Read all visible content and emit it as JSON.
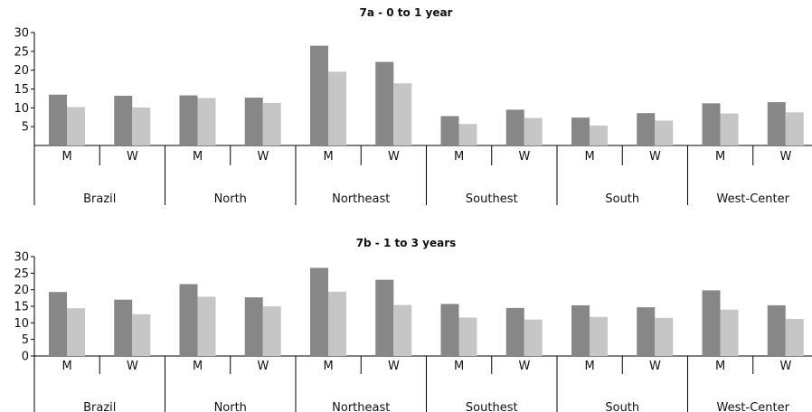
{
  "chart_data": [
    {
      "type": "bar",
      "title": "7a - 0 to 1 year",
      "xlabel": "",
      "ylabel": "",
      "ylim": [
        0,
        30
      ],
      "yticks": [
        5,
        10,
        15,
        20,
        25,
        30
      ],
      "grid": false,
      "legend": "none",
      "regions": [
        "Brazil",
        "North",
        "Northeast",
        "Southest",
        "South",
        "West-Center"
      ],
      "categories": [
        "M",
        "W",
        "M",
        "W",
        "M",
        "W",
        "M",
        "W",
        "M",
        "W",
        "M",
        "W"
      ],
      "colors": [
        "#878787",
        "#c6c6c6"
      ],
      "series": [
        {
          "values": [
            13.5,
            13.2,
            13.3,
            12.7,
            26.5,
            22.2,
            7.8,
            9.5,
            7.4,
            8.6,
            11.2,
            11.5
          ]
        },
        {
          "values": [
            10.2,
            10.1,
            12.6,
            11.3,
            19.6,
            16.5,
            5.7,
            7.3,
            5.3,
            6.6,
            8.5,
            8.8
          ]
        }
      ]
    },
    {
      "type": "bar",
      "title": "7b - 1 to 3 years",
      "xlabel": "",
      "ylabel": "",
      "ylim": [
        0,
        30
      ],
      "yticks": [
        0,
        5,
        10,
        15,
        20,
        25,
        30
      ],
      "grid": false,
      "legend": "none",
      "regions": [
        "Brazil",
        "North",
        "Northeast",
        "Southest",
        "South",
        "West-Center"
      ],
      "categories": [
        "M",
        "W",
        "M",
        "W",
        "M",
        "W",
        "M",
        "W",
        "M",
        "W",
        "M",
        "W"
      ],
      "colors": [
        "#878787",
        "#c6c6c6"
      ],
      "series": [
        {
          "values": [
            19.3,
            17.0,
            21.7,
            17.7,
            26.6,
            23.0,
            15.7,
            14.5,
            15.3,
            14.7,
            19.8,
            15.3
          ]
        },
        {
          "values": [
            14.4,
            12.6,
            17.9,
            15.0,
            19.4,
            15.4,
            11.6,
            11.0,
            11.8,
            11.5,
            14.0,
            11.2
          ]
        }
      ]
    }
  ]
}
